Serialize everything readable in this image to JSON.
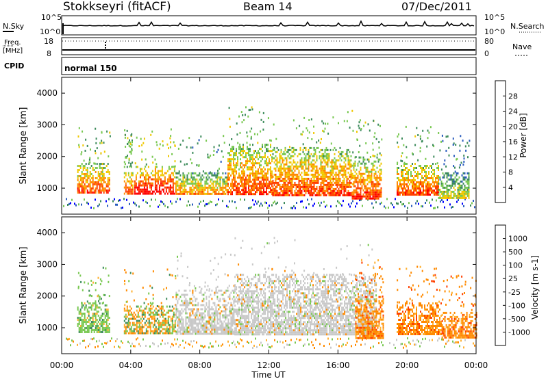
{
  "header": {
    "station": "Stokkseyri (fitACF)",
    "beam": "Beam 14",
    "date": "07/Dec/2011"
  },
  "status_panels": {
    "nsky_label": "N.Sky",
    "nsky_ticks": [
      "10^5",
      "10^0"
    ],
    "nsearch_label": "N.Search",
    "nsearch_ticks": [
      "10^5",
      "10^0"
    ],
    "freq_label": "Freq.",
    "freq_unit": "[MHz]",
    "freq_ticks": [
      "18",
      "8"
    ],
    "nave_label": "Nave",
    "nave_ticks": [
      "80",
      "0"
    ],
    "cpid_label": "CPID",
    "cpid_value": "normal 150"
  },
  "chart_data": [
    {
      "type": "heatmap",
      "panel": "power",
      "ylabel": "Slant Range [km]",
      "yticks": [
        "1000",
        "2000",
        "3000",
        "4000"
      ],
      "ylim": [
        180,
        4500
      ],
      "xlim": [
        0,
        24
      ],
      "colorbar_label": "Power [dB]",
      "colorbar_ticks": [
        "28",
        "24",
        "20",
        "16",
        "12",
        "8",
        "4"
      ],
      "colorbar_colors": [
        "#0000ff",
        "#2a5cbd",
        "#3b8a5a",
        "#78c850",
        "#f0c800",
        "#ff8a00",
        "#ff4000",
        "#ff0000"
      ],
      "bands": [
        {
          "x": [
            0.9,
            2.8
          ],
          "y": [
            850,
            1800
          ],
          "level": 5
        },
        {
          "x": [
            3.6,
            4.1
          ],
          "y": [
            800,
            1700
          ],
          "level": 5
        },
        {
          "x": [
            4.2,
            6.6
          ],
          "y": [
            800,
            1700
          ],
          "level": 6
        },
        {
          "x": [
            6.6,
            9.6
          ],
          "y": [
            850,
            1500
          ],
          "level": 4
        },
        {
          "x": [
            9.6,
            12.2
          ],
          "y": [
            800,
            2400
          ],
          "level": 5
        },
        {
          "x": [
            12.2,
            16.8
          ],
          "y": [
            800,
            2300
          ],
          "level": 5
        },
        {
          "x": [
            16.8,
            18.5
          ],
          "y": [
            700,
            2000
          ],
          "level": 5
        },
        {
          "x": [
            19.4,
            21.8
          ],
          "y": [
            800,
            1800
          ],
          "level": 5
        },
        {
          "x": [
            21.8,
            23.6
          ],
          "y": [
            700,
            1500
          ],
          "level": 3
        }
      ]
    },
    {
      "type": "heatmap",
      "panel": "velocity",
      "ylabel": "Slant Range [km]",
      "yticks": [
        "1000",
        "2000",
        "3000",
        "4000"
      ],
      "ylim": [
        180,
        4500
      ],
      "xlim": [
        0,
        24
      ],
      "xticks": [
        "00:00",
        "04:00",
        "08:00",
        "12:00",
        "16:00",
        "20:00",
        "00:00"
      ],
      "xlabel": "Time UT",
      "colorbar_label": "Velocity [m s-1]",
      "colorbar_ticks": [
        "1000",
        "500",
        "100",
        "25",
        "-25",
        "-100",
        "-500",
        "-1000"
      ],
      "colorbar_colors": [
        "#ff0000",
        "#ff4000",
        "#ff8a00",
        "#ffb030",
        "#c8c8c8",
        "#78c850",
        "#3b8a5a",
        "#2a5cbd",
        "#0000ff"
      ],
      "bands": [
        {
          "x": [
            0.9,
            2.8
          ],
          "y": [
            850,
            1800
          ],
          "kind": "green"
        },
        {
          "x": [
            3.6,
            6.6
          ],
          "y": [
            800,
            1700
          ],
          "kind": "mixed"
        },
        {
          "x": [
            6.6,
            10.0
          ],
          "y": [
            800,
            2200
          ],
          "kind": "grey"
        },
        {
          "x": [
            10.0,
            18.2
          ],
          "y": [
            800,
            2700
          ],
          "kind": "grey"
        },
        {
          "x": [
            17.0,
            18.6
          ],
          "y": [
            700,
            2000
          ],
          "kind": "orange"
        },
        {
          "x": [
            19.4,
            22.0
          ],
          "y": [
            800,
            1800
          ],
          "kind": "orange"
        },
        {
          "x": [
            22.0,
            24.0
          ],
          "y": [
            700,
            1500
          ],
          "kind": "orange"
        }
      ]
    }
  ]
}
